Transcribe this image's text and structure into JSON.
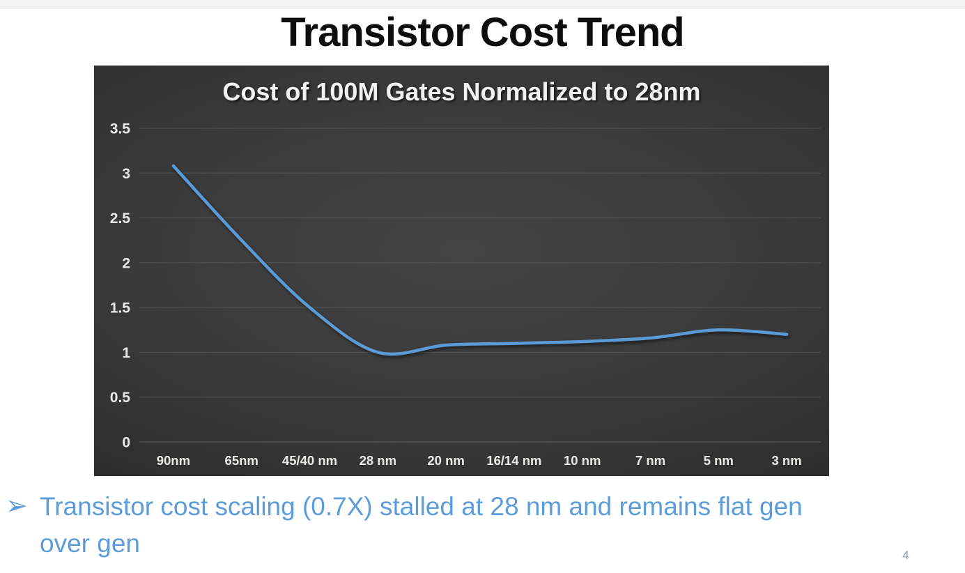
{
  "slide": {
    "title": "Transistor Cost Trend",
    "page_number": "4"
  },
  "chart_data": {
    "type": "line",
    "title": "Cost of 100M Gates Normalized to 28nm",
    "categories": [
      "90nm",
      "65nm",
      "45/40 nm",
      "28 nm",
      "20 nm",
      "16/14 nm",
      "10 nm",
      "7 nm",
      "5 nm",
      "3 nm"
    ],
    "values": [
      3.08,
      2.25,
      1.5,
      1.0,
      1.08,
      1.1,
      1.12,
      1.16,
      1.25,
      1.2
    ],
    "series_name": "Cost of 100M gates normalized to 28nm",
    "xlabel": "",
    "ylabel": "",
    "ylim": [
      0,
      3.5
    ],
    "ytick_step": 0.5,
    "grid": true,
    "legend": "none",
    "smooth": true,
    "line_color": "#5B9BD5",
    "plot_background": "dark-gray-gradient",
    "axis_label_color": "#ebe9e6"
  },
  "bullet": {
    "marker": "➢",
    "lines": [
      "Transistor cost scaling (0.7X) stalled at 28 nm and remains flat gen",
      "over gen"
    ],
    "text_color": "#5d9cdb"
  }
}
